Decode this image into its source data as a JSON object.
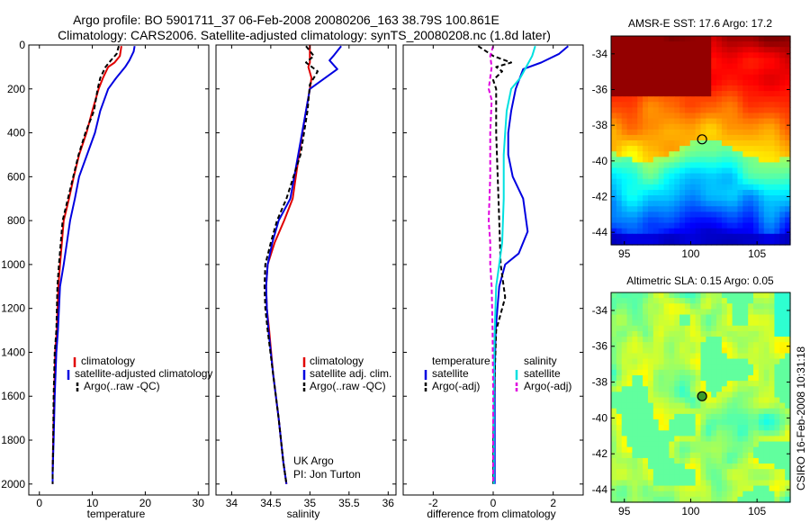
{
  "header": {
    "line1": "Argo profile: BO 5901711_37 06-Feb-2008 20080206_163 38.79S 100.861E",
    "line2": "Climatology: CARS2006. Satellite-adjusted climatology: synTS_20080208.nc (1.8d later)"
  },
  "colors": {
    "climatology": "#e00000",
    "satellite": "#0000e0",
    "argo": "#000000",
    "sat_diff": "#00e0e0",
    "argo_sal_diff": "#e000e0"
  },
  "panels": {
    "temperature": {
      "xlabel": "temperature",
      "legend": [
        "climatology",
        "satellite-adjusted climatology",
        "Argo(..raw -QC)"
      ]
    },
    "salinity": {
      "xlabel": "salinity",
      "legend": [
        "climatology",
        "satellite adj. clim.",
        "Argo(..raw -QC)"
      ],
      "note1": "UK Argo",
      "note2": "PI: Jon Turton"
    },
    "difference": {
      "xlabel": "difference from climatology",
      "temp_header": "temperature",
      "sal_header": "salinity",
      "temp_legend": [
        "satellite",
        "Argo(-adj)"
      ],
      "sal_legend": [
        "satellite",
        "Argo(-adj)"
      ]
    },
    "sst_map": {
      "title": "AMSR-E SST: 17.6 Argo: 17.2",
      "yticks": [
        "-34",
        "-36",
        "-38",
        "-40",
        "-42",
        "-44"
      ],
      "xticks": [
        "95",
        "100",
        "105"
      ]
    },
    "sla_map": {
      "title": "Altimetric SLA: 0.15 Argo: 0.05",
      "yticks": [
        "-34",
        "-36",
        "-38",
        "-40",
        "-42",
        "-44"
      ],
      "xticks": [
        "95",
        "100",
        "105"
      ]
    }
  },
  "footer": {
    "stamp": "CSIRO 16-Feb-2008 10:31:18"
  },
  "chart_data": [
    {
      "type": "line",
      "xlabel": "temperature",
      "ylabel": "",
      "xlim": [
        -2,
        32
      ],
      "ylim": [
        2050,
        0
      ],
      "xticks": [
        0,
        10,
        20,
        30
      ],
      "yticks": [
        0,
        200,
        400,
        600,
        800,
        1000,
        1200,
        1400,
        1600,
        1800,
        2000
      ],
      "series": [
        {
          "name": "climatology",
          "color": "#e00000",
          "x": [
            15.5,
            15.2,
            14.2,
            13.0,
            12.0,
            11.2,
            10.0,
            8.9,
            7.5,
            6.5,
            5.6,
            4.6,
            3.9,
            3.6,
            3.3,
            3.0,
            2.8,
            2.6,
            2.5,
            2.5
          ],
          "y": [
            5,
            50,
            80,
            100,
            150,
            200,
            300,
            400,
            500,
            600,
            700,
            800,
            1000,
            1100,
            1300,
            1400,
            1600,
            1800,
            1950,
            2000
          ]
        },
        {
          "name": "satellite-adjusted climatology",
          "color": "#0000e0",
          "x": [
            18.0,
            17.8,
            17.0,
            16.2,
            14.5,
            13.0,
            11.5,
            10.5,
            9.0,
            7.5,
            6.7,
            5.8,
            4.6,
            3.9,
            3.5,
            3.2,
            2.9,
            2.7,
            2.5,
            2.5
          ],
          "y": [
            5,
            30,
            70,
            100,
            150,
            200,
            300,
            400,
            500,
            600,
            700,
            800,
            1000,
            1100,
            1300,
            1400,
            1600,
            1800,
            1950,
            2000
          ]
        },
        {
          "name": "Argo(..raw -QC)",
          "color": "#000000",
          "x": [
            15.0,
            14.6,
            13.5,
            12.5,
            11.5,
            11.0,
            10.3,
            8.7,
            7.4,
            6.4,
            5.4,
            4.4,
            3.7,
            3.4,
            3.2,
            2.9,
            2.7,
            2.6,
            2.5,
            2.5
          ],
          "y": [
            5,
            40,
            70,
            100,
            150,
            200,
            300,
            400,
            500,
            600,
            700,
            800,
            1000,
            1100,
            1300,
            1400,
            1600,
            1800,
            1950,
            2000
          ]
        }
      ]
    },
    {
      "type": "line",
      "xlabel": "salinity",
      "ylabel": "",
      "xlim": [
        33.8,
        36.1
      ],
      "ylim": [
        2050,
        0
      ],
      "xticks": [
        34,
        34.5,
        35,
        35.5,
        36
      ],
      "series": [
        {
          "name": "climatology",
          "color": "#e00000",
          "x": [
            35.0,
            35.0,
            34.98,
            35.02,
            35.0,
            34.95,
            34.86,
            34.78,
            34.67,
            34.55,
            34.46,
            34.44,
            34.45,
            34.48,
            34.53,
            34.6,
            34.66,
            34.7
          ],
          "y": [
            0,
            80,
            100,
            150,
            200,
            300,
            500,
            700,
            800,
            900,
            1000,
            1100,
            1200,
            1300,
            1500,
            1700,
            1900,
            2000
          ]
        },
        {
          "name": "satellite adj. clim.",
          "color": "#0000e0",
          "x": [
            35.4,
            35.3,
            35.25,
            35.35,
            35.0,
            34.95,
            34.85,
            34.75,
            34.6,
            34.52,
            34.46,
            34.44,
            34.45,
            34.47,
            34.53,
            34.6,
            34.66,
            34.7
          ],
          "y": [
            5,
            50,
            70,
            110,
            200,
            300,
            500,
            700,
            800,
            900,
            1000,
            1100,
            1200,
            1300,
            1500,
            1700,
            1900,
            2000
          ]
        },
        {
          "name": "Argo(..raw -QC)",
          "color": "#000000",
          "x": [
            34.95,
            35.05,
            34.95,
            35.1,
            35.0,
            34.97,
            34.88,
            34.7,
            34.58,
            34.5,
            34.43,
            34.42,
            34.43,
            34.46,
            34.53,
            34.6,
            34.66,
            34.7
          ],
          "y": [
            5,
            50,
            80,
            120,
            180,
            300,
            500,
            700,
            800,
            900,
            1000,
            1100,
            1200,
            1300,
            1500,
            1700,
            1900,
            2000
          ]
        }
      ]
    },
    {
      "type": "line",
      "xlabel": "difference from climatology",
      "ylabel": "",
      "xlim": [
        -3.0,
        3.0
      ],
      "ylim": [
        2050,
        0
      ],
      "xticks": [
        -2,
        0,
        2
      ],
      "series": [
        {
          "name": "satellite",
          "color": "#0000e0",
          "x": [
            2.5,
            2.2,
            1.6,
            1.0,
            0.75,
            0.6,
            0.5,
            0.5,
            0.65,
            1.0,
            1.15,
            0.85,
            0.4,
            0.2,
            0.08,
            0.05,
            0.05,
            0.05
          ],
          "y": [
            5,
            40,
            80,
            110,
            200,
            300,
            400,
            500,
            600,
            700,
            850,
            950,
            1000,
            1100,
            1300,
            1500,
            1800,
            2000
          ]
        },
        {
          "name": "Argo(-adj)",
          "color": "#000000",
          "x": [
            -0.5,
            0.0,
            0.6,
            0.1,
            0.3,
            0.0,
            0.1,
            0.1,
            0.15,
            0.2,
            0.25,
            0.4,
            0.1,
            0.05,
            0.0,
            0.0
          ],
          "y": [
            5,
            50,
            80,
            100,
            120,
            160,
            200,
            400,
            600,
            800,
            1000,
            1150,
            1300,
            1500,
            1800,
            2000
          ]
        },
        {
          "name": "satellite",
          "color": "#00e0e0",
          "x": [
            1.4,
            1.3,
            1.1,
            0.9,
            0.6,
            0.45,
            0.4,
            0.35,
            0.35,
            0.3,
            0.2,
            0.1,
            0.05,
            0.02,
            0.02
          ],
          "y": [
            5,
            50,
            100,
            150,
            200,
            300,
            400,
            500,
            700,
            900,
            1000,
            1100,
            1300,
            1600,
            2000
          ]
        },
        {
          "name": "Argo(-adj)",
          "color": "#e000e0",
          "x": [
            0.0,
            -0.1,
            -0.05,
            -0.15,
            -0.05,
            -0.1,
            -0.1,
            -0.15,
            -0.1,
            -0.1,
            -0.05,
            -0.02,
            0.0,
            0.0
          ],
          "y": [
            5,
            50,
            100,
            200,
            250,
            400,
            600,
            800,
            900,
            1000,
            1100,
            1300,
            1600,
            2000
          ]
        }
      ]
    },
    {
      "type": "heatmap",
      "title": "AMSR-E SST: 17.6 Argo: 17.2",
      "xlim": [
        94,
        107.5
      ],
      "ylim": [
        -44.7,
        -33
      ],
      "marker": {
        "lon": 100.86,
        "lat": -38.79
      }
    },
    {
      "type": "heatmap",
      "title": "Altimetric SLA: 0.15 Argo: 0.05",
      "xlim": [
        94,
        107.5
      ],
      "ylim": [
        -44.7,
        -33
      ],
      "marker": {
        "lon": 100.86,
        "lat": -38.79
      }
    }
  ]
}
